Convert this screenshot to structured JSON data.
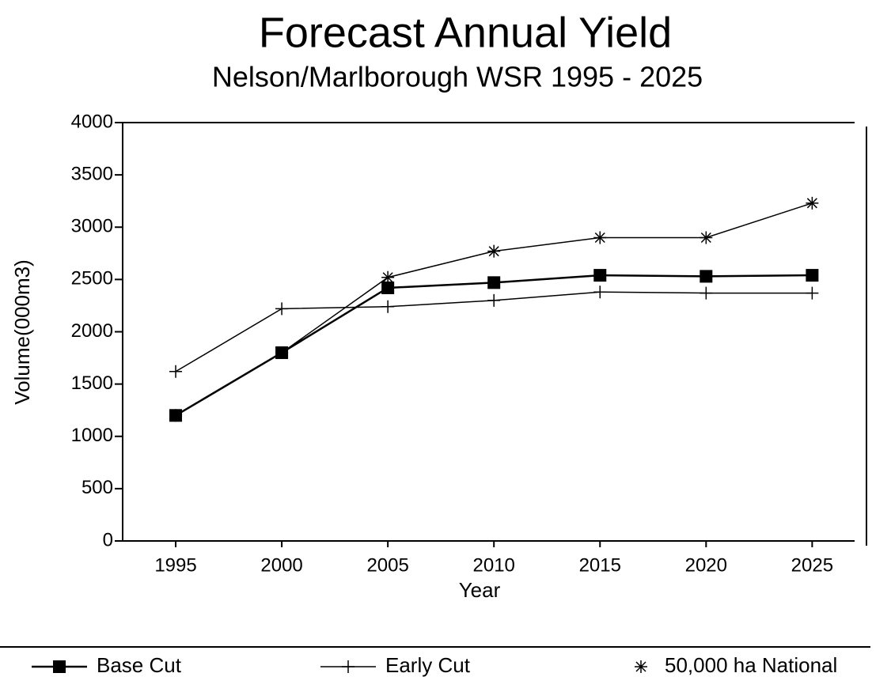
{
  "chart_data": {
    "type": "line",
    "title": "Forecast Annual Yield",
    "subtitle": "Nelson/Marlborough WSR 1995 - 2025",
    "x_label": "Year",
    "y_label": "Volume(000m3)",
    "x": [
      1995,
      2000,
      2005,
      2010,
      2015,
      2020,
      2025
    ],
    "xlim": [
      1992.5,
      2027
    ],
    "xticks": [
      1995,
      2000,
      2005,
      2010,
      2015,
      2020,
      2025
    ],
    "ylim": [
      0,
      4000
    ],
    "yticks": [
      0,
      500,
      1000,
      1500,
      2000,
      2500,
      3000,
      3500,
      4000
    ],
    "grid": false,
    "legend": "bottom",
    "series": [
      {
        "name": "Base Cut",
        "color": "#000000",
        "marker": "square",
        "values": [
          1200,
          1800,
          2420,
          2470,
          2540,
          2530,
          2540
        ]
      },
      {
        "name": "Early Cut",
        "color": "#000000",
        "marker": "plus",
        "values": [
          1620,
          2220,
          2240,
          2300,
          2380,
          2370,
          2370
        ]
      },
      {
        "name": "50,000 ha National",
        "color": "#000000",
        "marker": "star",
        "values": [
          1200,
          1800,
          2520,
          2770,
          2900,
          2900,
          3230
        ]
      }
    ]
  }
}
